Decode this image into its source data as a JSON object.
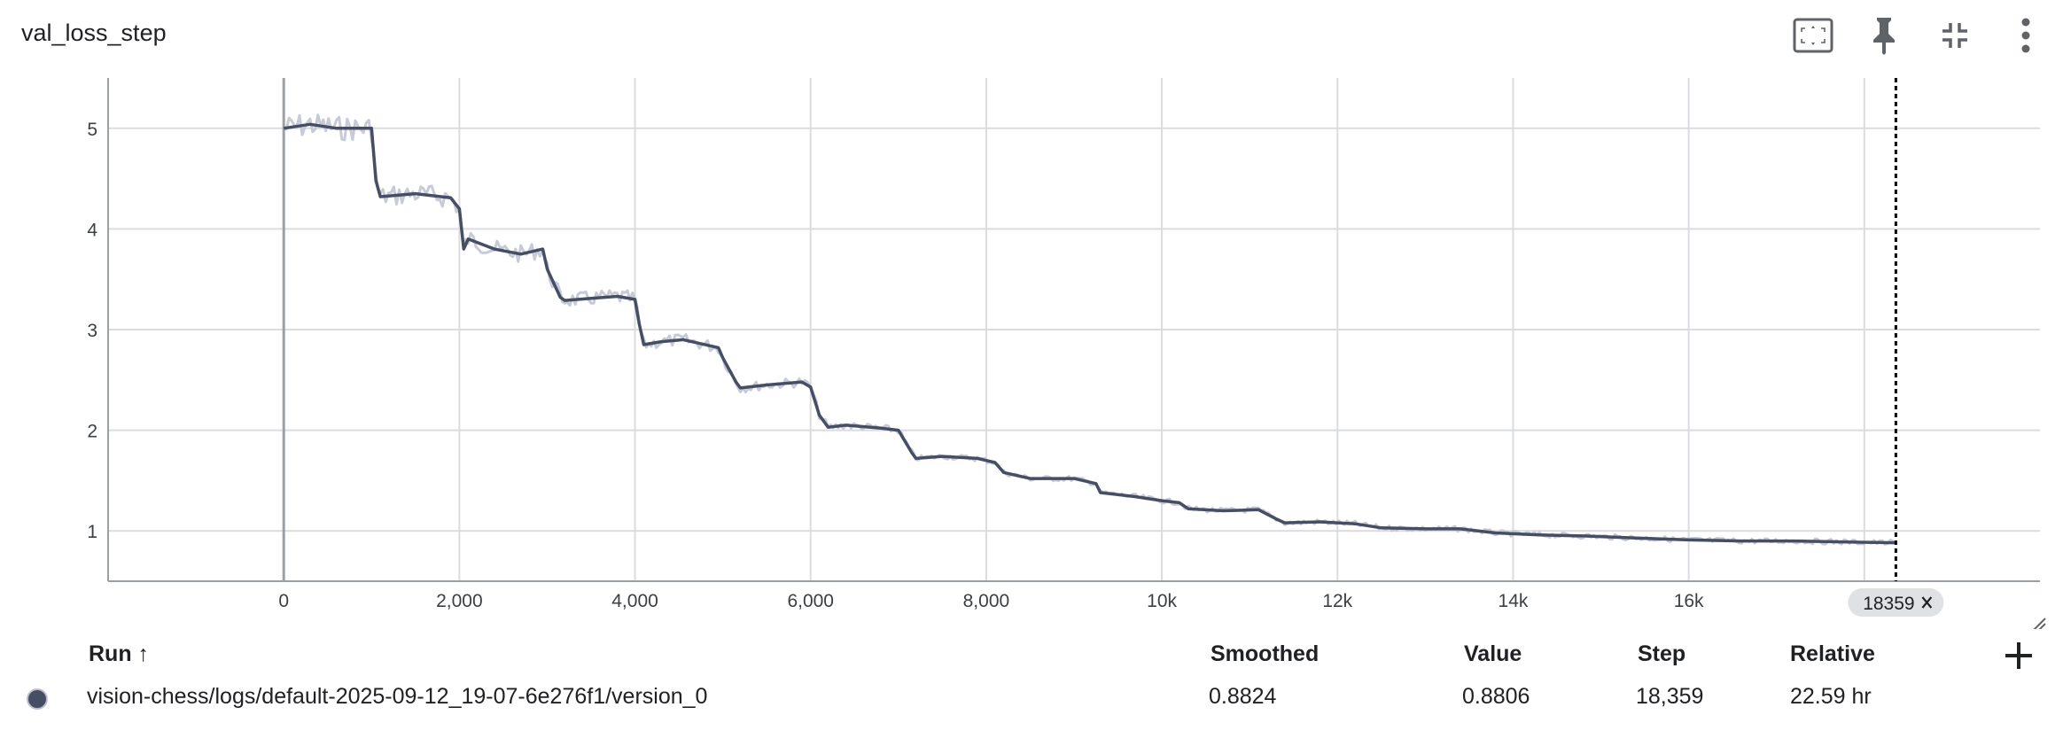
{
  "card": {
    "title": "val_loss_step"
  },
  "header_icons": [
    "fit-domain-icon",
    "pin-icon",
    "collapse-icon",
    "more-vert-icon"
  ],
  "colors": {
    "line": "#454e63",
    "raw": "#c6cbd7",
    "grid": "#dadce0",
    "axis_text": "#3c4043",
    "chip_bg": "#dfe1e5"
  },
  "chart_data": {
    "type": "line",
    "title": "val_loss_step",
    "xlabel": "",
    "ylabel": "",
    "xlim": [
      -2000,
      20000
    ],
    "ylim": [
      0.5,
      5.5
    ],
    "x_ticks": [
      {
        "v": 0,
        "label": "0"
      },
      {
        "v": 2000,
        "label": "2,000"
      },
      {
        "v": 4000,
        "label": "4,000"
      },
      {
        "v": 6000,
        "label": "6,000"
      },
      {
        "v": 8000,
        "label": "8,000"
      },
      {
        "v": 10000,
        "label": "10k"
      },
      {
        "v": 12000,
        "label": "12k"
      },
      {
        "v": 14000,
        "label": "14k"
      },
      {
        "v": 16000,
        "label": "16k"
      },
      {
        "v": 18000,
        "label": ""
      }
    ],
    "y_ticks": [
      {
        "v": 1,
        "label": "1"
      },
      {
        "v": 2,
        "label": "2"
      },
      {
        "v": 3,
        "label": "3"
      },
      {
        "v": 4,
        "label": "4"
      },
      {
        "v": 5,
        "label": "5"
      }
    ],
    "grid": true,
    "cursor": {
      "step": 18359,
      "label": "18359"
    },
    "series": [
      {
        "name": "vision-chess/logs/default-2025-09-12_19-07-6e276f1/version_0",
        "x": [
          0,
          300,
          600,
          1000,
          1050,
          1100,
          1500,
          1900,
          2000,
          2050,
          2100,
          2400,
          2700,
          2950,
          3000,
          3150,
          3200,
          3500,
          3800,
          4000,
          4050,
          4100,
          4300,
          4550,
          4950,
          5000,
          5150,
          5200,
          5500,
          5900,
          6000,
          6100,
          6200,
          6400,
          6800,
          7000,
          7150,
          7200,
          7500,
          7900,
          8100,
          8200,
          8500,
          9000,
          9250,
          9300,
          9700,
          10000,
          10200,
          10300,
          10700,
          11100,
          11300,
          11400,
          11800,
          12200,
          12500,
          13000,
          13400,
          13800,
          14300,
          14800,
          15400,
          16000,
          16600,
          17200,
          17800,
          18359
        ],
        "y": [
          5.0,
          5.04,
          5.0,
          5.0,
          4.48,
          4.32,
          4.35,
          4.31,
          4.2,
          3.8,
          3.9,
          3.8,
          3.75,
          3.8,
          3.6,
          3.32,
          3.29,
          3.31,
          3.33,
          3.3,
          3.05,
          2.85,
          2.88,
          2.9,
          2.82,
          2.72,
          2.48,
          2.42,
          2.45,
          2.48,
          2.43,
          2.15,
          2.03,
          2.05,
          2.02,
          2.0,
          1.78,
          1.72,
          1.74,
          1.72,
          1.68,
          1.58,
          1.52,
          1.52,
          1.47,
          1.38,
          1.34,
          1.3,
          1.28,
          1.22,
          1.2,
          1.21,
          1.12,
          1.08,
          1.09,
          1.07,
          1.03,
          1.02,
          1.02,
          0.98,
          0.96,
          0.95,
          0.93,
          0.91,
          0.9,
          0.9,
          0.89,
          0.882
        ]
      }
    ]
  },
  "table": {
    "headers": {
      "run": "Run ↑",
      "smoothed": "Smoothed",
      "value": "Value",
      "step": "Step",
      "relative": "Relative"
    },
    "rows": [
      {
        "run": "vision-chess/logs/default-2025-09-12_19-07-6e276f1/version_0",
        "smoothed": "0.8824",
        "value": "0.8806",
        "step": "18,359",
        "relative": "22.59 hr"
      }
    ]
  }
}
